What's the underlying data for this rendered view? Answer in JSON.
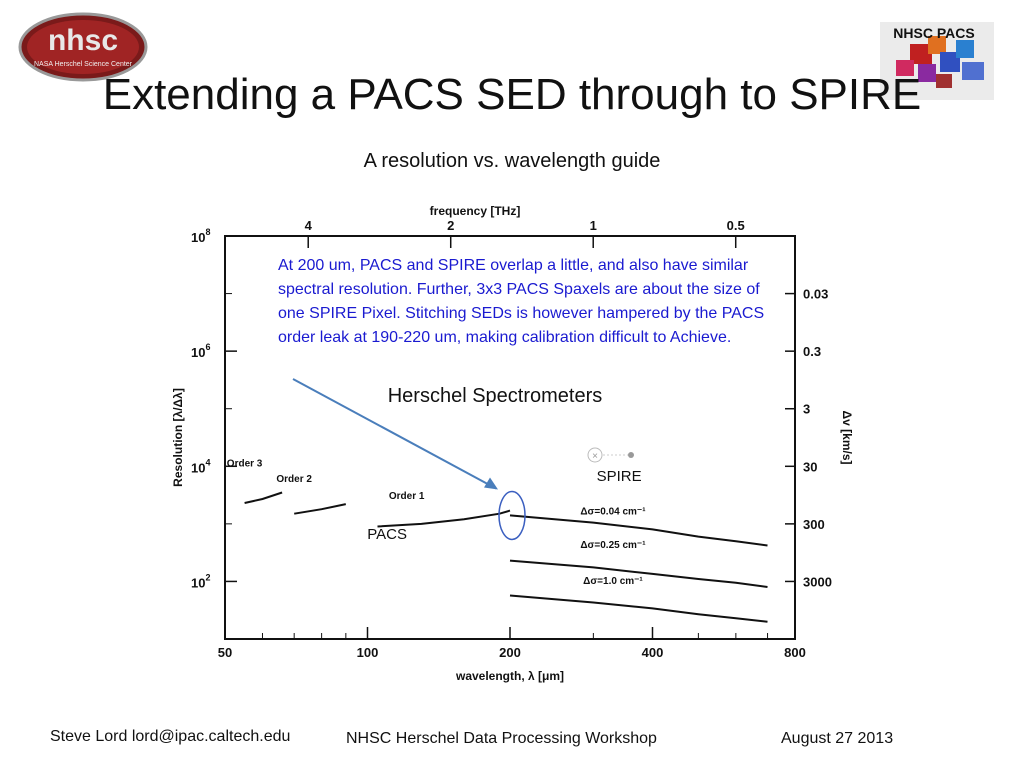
{
  "slide": {
    "title": "Extending a PACS SED through to SPIRE",
    "subtitle": "A resolution vs. wavelength guide",
    "logo_left_text": "nhsc",
    "logo_left_subtext": "NASA Herschel Science Center",
    "logo_right_text": "NHSC PACS",
    "annotation": "At 200 um, PACS and SPIRE overlap a little, and also have similar spectral resolution. Further, 3x3 PACS Spaxels are about the size of one SPIRE Pixel. Stitching SEDs is however hampered by the PACS order leak at 190-220 um, making calibration difficult to Achieve.",
    "footer_author": "Steve Lord lord@ipac.caltech.edu",
    "footer_event": "NHSC Herschel Data Processing Workshop",
    "footer_date": "August 27 2013",
    "colors": {
      "annotation": "#1a1ad0",
      "arrow": "#4a7ebb",
      "highlight": "#3b5fc0"
    }
  },
  "chart_data": {
    "type": "line",
    "title": "Herschel Spectrometers",
    "xlabel": "wavelength, λ [μm]",
    "ylabel": "Resolution [λ/Δλ]",
    "top_axis_label": "frequency [THz]",
    "right_axis_label": "Δv [km/s]",
    "x_scale": "log",
    "y_scale": "log",
    "xlim": [
      50,
      800
    ],
    "ylim": [
      10,
      100000000
    ],
    "x_ticks": [
      {
        "value": 50,
        "label": "50"
      },
      {
        "value": 100,
        "label": "100"
      },
      {
        "value": 200,
        "label": "200"
      },
      {
        "value": 400,
        "label": "400"
      },
      {
        "value": 800,
        "label": "800"
      }
    ],
    "y_ticks": [
      {
        "value": 100,
        "base": "10",
        "exp": "2"
      },
      {
        "value": 10000,
        "base": "10",
        "exp": "4"
      },
      {
        "value": 1000000,
        "base": "10",
        "exp": "6"
      },
      {
        "value": 100000000,
        "base": "10",
        "exp": "8"
      }
    ],
    "top_ticks": [
      {
        "value": 4,
        "label": "4"
      },
      {
        "value": 2,
        "label": "2"
      },
      {
        "value": 1,
        "label": "1"
      },
      {
        "value": 0.5,
        "label": "0.5"
      }
    ],
    "right_ticks": [
      {
        "value": 0.03,
        "label": "0.03"
      },
      {
        "value": 0.3,
        "label": "0.3"
      },
      {
        "value": 3,
        "label": "3"
      },
      {
        "value": 30,
        "label": "30"
      },
      {
        "value": 300,
        "label": "300"
      },
      {
        "value": 3000,
        "label": "3000"
      }
    ],
    "series": [
      {
        "name": "Order 3",
        "label_at": [
          55,
          10000
        ],
        "x": [
          55,
          60,
          66
        ],
        "y": [
          2300,
          2700,
          3500
        ]
      },
      {
        "name": "Order 2",
        "label_at": [
          70,
          5300
        ],
        "x": [
          70,
          80,
          90
        ],
        "y": [
          1500,
          1800,
          2200
        ]
      },
      {
        "name": "Order 1",
        "label_at": [
          121,
          2700
        ],
        "x": [
          105,
          130,
          160,
          190,
          200
        ],
        "y": [
          900,
          1000,
          1200,
          1500,
          1700
        ]
      },
      {
        "name": "Δσ=0.04 cm⁻¹",
        "label_at": [
          330,
          1450
        ],
        "x": [
          200,
          300,
          400,
          500,
          600,
          700
        ],
        "y": [
          1400,
          1050,
          800,
          600,
          500,
          420
        ]
      },
      {
        "name": "Δσ=0.25 cm⁻¹",
        "label_at": [
          330,
          380
        ],
        "x": [
          200,
          300,
          400,
          500,
          600,
          700
        ],
        "y": [
          230,
          175,
          135,
          110,
          95,
          80
        ]
      },
      {
        "name": "Δσ=1.0 cm⁻¹",
        "label_at": [
          330,
          90
        ],
        "x": [
          200,
          300,
          400,
          500,
          600,
          700
        ],
        "y": [
          57,
          43,
          34,
          27,
          23,
          20
        ]
      }
    ],
    "annotations": [
      {
        "text": "PACS",
        "at": [
          110,
          550
        ]
      },
      {
        "text": "SPIRE",
        "at": [
          340,
          5500
        ]
      }
    ]
  }
}
